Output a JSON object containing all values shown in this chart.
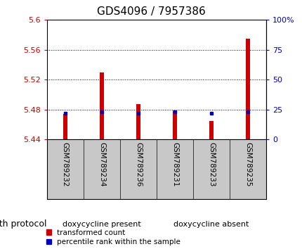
{
  "title": "GDS4096 / 7957386",
  "samples": [
    "GSM789232",
    "GSM789234",
    "GSM789236",
    "GSM789231",
    "GSM789233",
    "GSM789235"
  ],
  "transformed_counts": [
    5.474,
    5.53,
    5.487,
    5.479,
    5.465,
    5.575
  ],
  "percentile_ranks": [
    22,
    23,
    22,
    23,
    22,
    23
  ],
  "ylim_left": [
    5.44,
    5.6
  ],
  "ylim_right": [
    0,
    100
  ],
  "yticks_left": [
    5.44,
    5.48,
    5.52,
    5.56,
    5.6
  ],
  "yticks_right": [
    0,
    25,
    50,
    75,
    100
  ],
  "ytick_labels_left": [
    "5.44",
    "5.48",
    "5.52",
    "5.56",
    "5.6"
  ],
  "ytick_labels_right": [
    "0",
    "25",
    "50",
    "75",
    "100%"
  ],
  "groups": [
    {
      "label": "doxycycline present",
      "indices": [
        0,
        1,
        2
      ],
      "color": "#90EE90"
    },
    {
      "label": "doxycycline absent",
      "indices": [
        3,
        4,
        5
      ],
      "color": "#44DD66"
    }
  ],
  "group_label": "growth protocol",
  "bar_color_red": "#CC0000",
  "bar_color_blue": "#0000BB",
  "bar_width": 0.12,
  "baseline": 5.44,
  "background_color": "#ffffff",
  "plot_bg_color": "#ffffff",
  "tick_label_area_color": "#C8C8C8",
  "grid_color": "#000000",
  "left_tick_color": "#CC0000",
  "right_tick_color": "#0000BB",
  "title_fontsize": 11,
  "tick_fontsize": 8,
  "sample_fontsize": 7.5,
  "legend_fontsize": 7.5,
  "group_label_fontsize": 9,
  "legend_marker_size": 7
}
